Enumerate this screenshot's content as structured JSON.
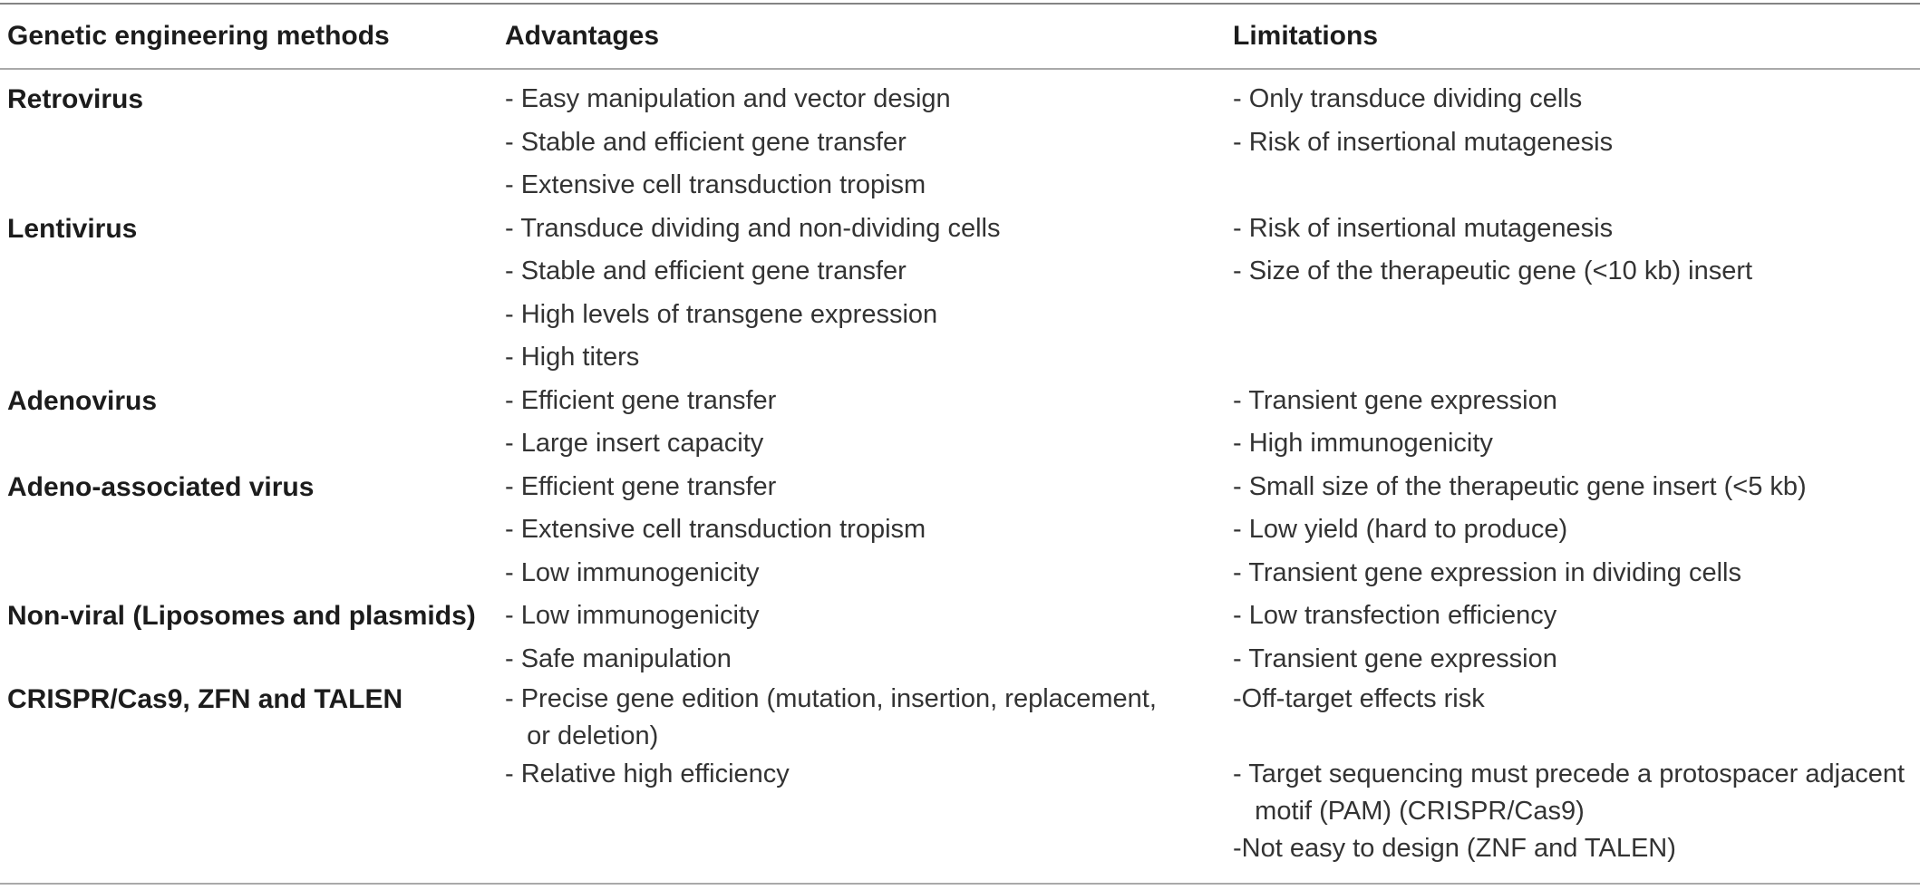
{
  "colors": {
    "rule_top": "#848484",
    "rule_thin": "#a9a9a9",
    "heading_text": "#1c1c1c",
    "body_text": "#333333",
    "background": "#ffffff"
  },
  "table": {
    "columns": [
      "Genetic engineering methods",
      "Advantages",
      "Limitations"
    ],
    "rows": [
      {
        "method": "Retrovirus",
        "advantages": [
          "- Easy manipulation and vector design",
          "- Stable and efficient gene transfer",
          "- Extensive cell transduction tropism"
        ],
        "limitations": [
          "- Only transduce dividing cells",
          "- Risk of insertional mutagenesis"
        ]
      },
      {
        "method": "Lentivirus",
        "advantages": [
          "- Transduce dividing and non-dividing cells",
          "- Stable and efficient gene transfer",
          "- High levels of transgene expression",
          "- High titers"
        ],
        "limitations": [
          "- Risk of insertional mutagenesis",
          "- Size of the therapeutic gene (<10 kb) insert"
        ]
      },
      {
        "method": "Adenovirus",
        "advantages": [
          "- Efficient gene transfer",
          "- Large insert capacity"
        ],
        "limitations": [
          "- Transient gene expression",
          "- High immunogenicity"
        ]
      },
      {
        "method": "Adeno-associated virus",
        "advantages": [
          "- Efficient gene transfer",
          "- Extensive cell transduction tropism",
          "- Low immunogenicity"
        ],
        "limitations": [
          "- Small size of the therapeutic gene insert (<5 kb)",
          "- Low yield (hard to produce)",
          "- Transient gene expression in dividing cells"
        ]
      },
      {
        "method": "Non-viral (Liposomes and plasmids)",
        "advantages": [
          "- Low immunogenicity",
          "- Safe manipulation"
        ],
        "limitations": [
          "- Low transfection efficiency",
          "- Transient gene expression"
        ]
      },
      {
        "method": "CRISPR/Cas9, ZFN and TALEN",
        "advantages": [
          "- Precise gene edition (mutation, insertion, replacement,",
          "   or deletion)",
          "- Relative high efficiency"
        ],
        "limitations": [
          "-Off-target effects risk",
          "",
          "- Target sequencing must precede a protospacer adjacent",
          "   motif (PAM) (CRISPR/Cas9)",
          "-Not easy to design (ZNF and TALEN)"
        ]
      }
    ]
  }
}
